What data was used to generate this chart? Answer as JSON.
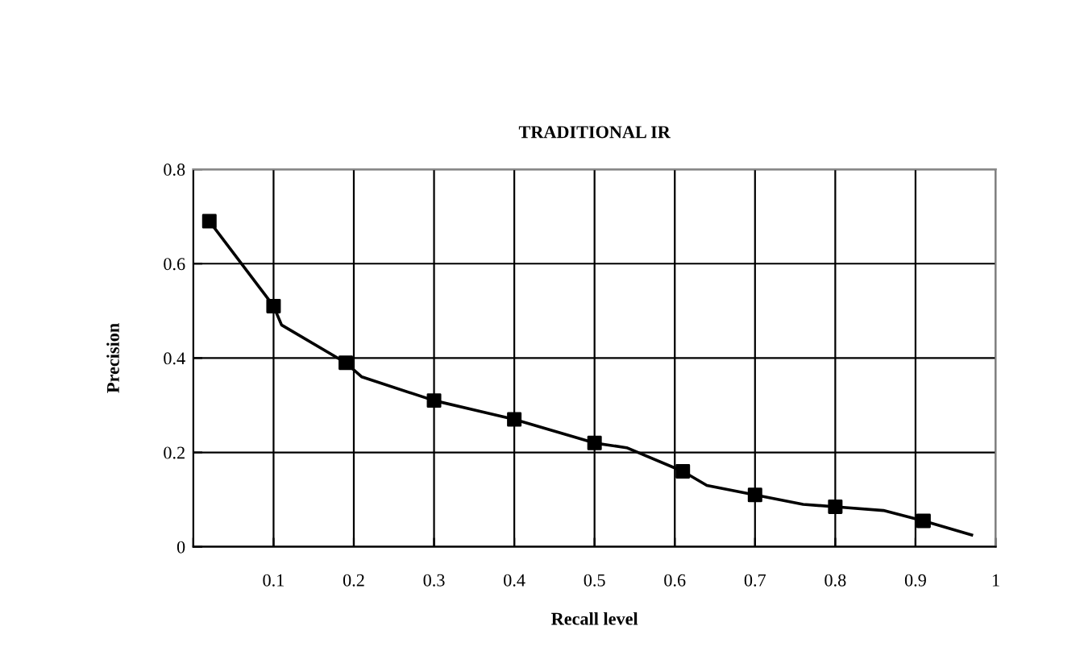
{
  "chart_data": {
    "type": "line",
    "title": "TRADITIONAL IR",
    "xlabel": "Recall level",
    "ylabel": "Precision",
    "series": [
      {
        "color": "#000000",
        "marker": "none",
        "x": [
          0.02,
          0.1,
          0.11,
          0.19,
          0.21,
          0.3,
          0.4,
          0.5,
          0.54,
          0.61,
          0.64,
          0.7,
          0.76,
          0.8,
          0.86,
          0.91,
          0.97
        ],
        "values": [
          0.69,
          0.51,
          0.47,
          0.39,
          0.36,
          0.31,
          0.27,
          0.22,
          0.21,
          0.16,
          0.13,
          0.11,
          0.09,
          0.085,
          0.077,
          0.055,
          0.025
        ]
      },
      {
        "type": "scatter",
        "color": "#000000",
        "marker": "square",
        "x": [
          0.02,
          0.1,
          0.19,
          0.3,
          0.4,
          0.5,
          0.61,
          0.7,
          0.8,
          0.91
        ],
        "values": [
          0.69,
          0.51,
          0.39,
          0.31,
          0.27,
          0.22,
          0.16,
          0.11,
          0.085,
          0.055
        ]
      }
    ],
    "xlim": [
      0,
      1
    ],
    "xticks": [
      {
        "value": 0,
        "label": null
      },
      0.1,
      0.2,
      0.3,
      0.4,
      0.5,
      0.6,
      0.7,
      0.8,
      0.9,
      1
    ],
    "ylim": [
      0,
      0.8
    ],
    "yticks": [
      0,
      0.2,
      0.4,
      0.6,
      0.8
    ],
    "grid": true,
    "legend": false,
    "line_style": "solid"
  }
}
